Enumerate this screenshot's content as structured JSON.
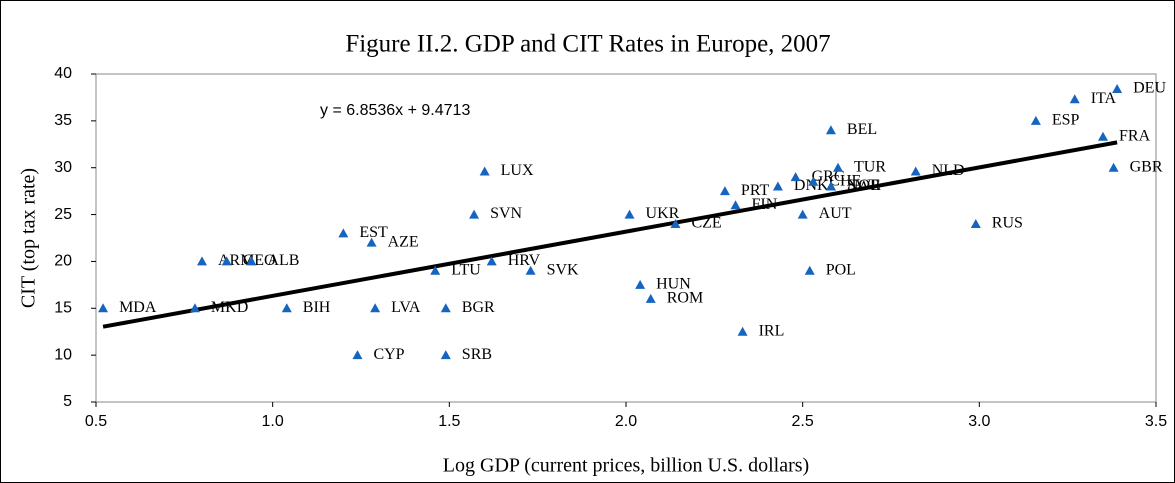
{
  "chart_data": {
    "type": "scatter",
    "title": "Figure II.2. GDP and CIT Rates in Europe, 2007",
    "xlabel": "Log GDP (current prices, billion U.S. dollars)",
    "ylabel": "CIT (top tax rate)",
    "color": "#1565c0",
    "labels": [
      "MDA",
      "ARM",
      "GEO",
      "ALB",
      "MKD",
      "BIH",
      "EST",
      "AZE",
      "CYP",
      "LVA",
      "LTU",
      "BGR",
      "SRB",
      "SVN",
      "LUX",
      "HRV",
      "SVK",
      "UKR",
      "CZE",
      "HUN",
      "ROM",
      "PRT",
      "FIN",
      "IRL",
      "DNK",
      "GRC",
      "CHE",
      "NOR",
      "SWE",
      "AUT",
      "BEL",
      "TUR",
      "POL",
      "NLD",
      "RUS",
      "ESP",
      "ITA",
      "FRA",
      "GBR",
      "DEU"
    ],
    "x": [
      0.52,
      0.8,
      0.87,
      0.94,
      0.78,
      1.04,
      1.2,
      1.28,
      1.24,
      1.29,
      1.46,
      1.49,
      1.49,
      1.57,
      1.6,
      1.62,
      1.73,
      2.01,
      2.14,
      2.04,
      2.07,
      2.28,
      2.31,
      2.33,
      2.43,
      2.48,
      2.53,
      2.58,
      2.58,
      2.5,
      2.58,
      2.6,
      2.52,
      2.82,
      2.99,
      3.16,
      3.27,
      3.35,
      3.38,
      3.39
    ],
    "values": [
      15,
      20,
      20,
      20,
      15,
      15,
      23,
      22,
      10,
      15,
      19,
      15,
      10,
      25,
      29.6,
      20,
      19,
      25,
      24,
      17.5,
      16,
      27.5,
      26,
      12.5,
      28,
      29,
      28.5,
      28,
      28,
      25,
      34,
      30,
      19,
      29.6,
      24,
      35,
      37.3,
      33.3,
      30,
      38.4
    ],
    "trendline": {
      "slope": 6.8536,
      "intercept": 9.4713,
      "label": "y = 6.8536x + 9.4713"
    },
    "xlim": [
      0.5,
      3.5
    ],
    "xticks": [
      0.5,
      {
        "value": 1,
        "label": "1.0"
      },
      1.5,
      {
        "value": 2,
        "label": "2.0"
      },
      2.5,
      {
        "value": 3,
        "label": "3.0"
      },
      3.5
    ],
    "ylim": [
      5,
      40
    ],
    "yticks": [
      5,
      10,
      15,
      20,
      25,
      30,
      35,
      40
    ]
  }
}
